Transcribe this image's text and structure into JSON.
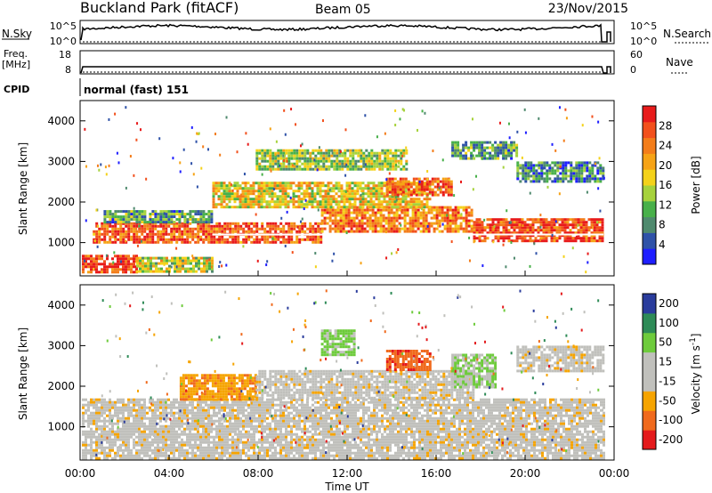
{
  "header": {
    "site": "Buckland Park (fitACF)",
    "beam": "Beam 05",
    "date": "23/Nov/2015"
  },
  "strip": {
    "nsky_label": "N.Sky",
    "nsky_top": "10^5",
    "nsky_bottom": "10^0",
    "nsearch_label": "N.Search",
    "nsearch_top": "10^5",
    "nsearch_bottom": "10^0",
    "freq_label_1": "Freq.",
    "freq_label_2": "[MHz]",
    "freq_top": "18",
    "freq_bottom": "8",
    "nave_label": "Nave",
    "nave_top": "60",
    "nave_bottom": "0",
    "cpid_label": "CPID",
    "cpid_value": "normal (fast) 151"
  },
  "colors": {
    "power": [
      "#1e1eff",
      "#2f52a8",
      "#4f8a6e",
      "#48b04a",
      "#a6d23c",
      "#f4d21a",
      "#f6a316",
      "#f37d1a",
      "#f2501c",
      "#e81b1b"
    ],
    "velocity": [
      "#e41a1c",
      "#f06a1d",
      "#f6a400",
      "#c0c0bc",
      "#c0c0bc",
      "#6ecb3c",
      "#2e8b57",
      "#2a3c9c"
    ]
  },
  "chart_data": [
    {
      "type": "heatmap",
      "name": "power",
      "xlabel": "",
      "ylabel": "Slant Range [km]",
      "yticks": [
        "1000",
        "2000",
        "3000",
        "4000"
      ],
      "ylim": [
        180,
        4500
      ],
      "colorbar_label": "Power [dB]",
      "colorbar_ticks": [
        "4",
        "8",
        "12",
        "16",
        "20",
        "24",
        "28"
      ],
      "colorbar_range": [
        0,
        32
      ],
      "bands": [
        {
          "t0": 0.0,
          "t1": 2.5,
          "r0": 250,
          "r1": 700,
          "level": 28
        },
        {
          "t0": 2.5,
          "t1": 6.0,
          "r0": 300,
          "r1": 650,
          "level": 16
        },
        {
          "t0": 0.5,
          "t1": 11.0,
          "r0": 1000,
          "r1": 1500,
          "level": 26
        },
        {
          "t0": 11.0,
          "t1": 18.0,
          "r0": 1300,
          "r1": 1900,
          "level": 24
        },
        {
          "t0": 18.0,
          "t1": 24.0,
          "r0": 1050,
          "r1": 1600,
          "level": 28
        },
        {
          "t0": 6.0,
          "t1": 16.0,
          "r0": 1900,
          "r1": 2500,
          "level": 18
        },
        {
          "t0": 14.0,
          "t1": 17.0,
          "r0": 2200,
          "r1": 2600,
          "level": 26
        },
        {
          "t0": 8.0,
          "t1": 15.0,
          "r0": 2800,
          "r1": 3300,
          "level": 14
        },
        {
          "t0": 17.0,
          "t1": 20.0,
          "r0": 3100,
          "r1": 3500,
          "level": 10
        },
        {
          "t0": 20.0,
          "t1": 24.0,
          "r0": 2500,
          "r1": 3000,
          "level": 8
        },
        {
          "t0": 1.0,
          "t1": 6.0,
          "r0": 1500,
          "r1": 1800,
          "level": 10
        }
      ],
      "white_line": {
        "t0": 6.0,
        "t1": 24.0,
        "r": 1200
      }
    },
    {
      "type": "heatmap",
      "name": "velocity",
      "xlabel": "Time UT",
      "ylabel": "Slant Range [km]",
      "xticks": [
        "00:00",
        "04:00",
        "08:00",
        "12:00",
        "16:00",
        "20:00",
        "00:00"
      ],
      "yticks": [
        "1000",
        "2000",
        "3000",
        "4000"
      ],
      "ylim": [
        180,
        4500
      ],
      "colorbar_label": "Velocity [m s^-1]",
      "colorbar_ticks": [
        "-200",
        "-100",
        "-50",
        "-15",
        "15",
        "50",
        "100",
        "200"
      ],
      "colorbar_range": [
        -200,
        200
      ],
      "bands": [
        {
          "t0": 0.0,
          "t1": 24.0,
          "r0": 250,
          "r1": 1700,
          "level": 0
        },
        {
          "t0": 4.5,
          "t1": 8.0,
          "r0": 1700,
          "r1": 2300,
          "level": -40
        },
        {
          "t0": 8.0,
          "t1": 18.0,
          "r0": 1700,
          "r1": 2400,
          "level": 0
        },
        {
          "t0": 14.0,
          "t1": 16.0,
          "r0": 2400,
          "r1": 2900,
          "level": -90
        },
        {
          "t0": 11.0,
          "t1": 12.5,
          "r0": 2800,
          "r1": 3400,
          "level": 60
        },
        {
          "t0": 17.0,
          "t1": 19.0,
          "r0": 2000,
          "r1": 2800,
          "level": 50
        },
        {
          "t0": 20.0,
          "t1": 24.0,
          "r0": 2400,
          "r1": 3000,
          "level": 0
        }
      ]
    }
  ]
}
